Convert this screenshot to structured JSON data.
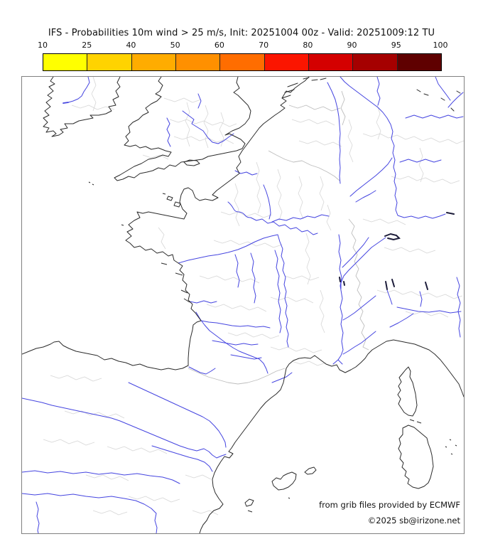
{
  "title": "IFS - Probabilities 10m wind > 25 m/s, Init: 20251004 00z - Valid: 20251009:12 TU",
  "colorbar": {
    "ticks": [
      "10",
      "25",
      "40",
      "50",
      "60",
      "70",
      "80",
      "90",
      "95",
      "100"
    ],
    "colors": [
      "#ffff00",
      "#ffd300",
      "#ffac00",
      "#ff9000",
      "#ff6d00",
      "#fb1500",
      "#d40000",
      "#a50000",
      "#5f0000"
    ]
  },
  "map": {
    "credit_line1": "from grib files provided by ECMWF",
    "credit_line2": "©2025 sb@irizone.net",
    "colors": {
      "coastline": "#2b2b2b",
      "river": "#4545e0",
      "admin_border": "#d6d6d6",
      "country_border": "#bdbdbd",
      "lake": "#1c1c3a",
      "frame": "#808080",
      "background": "#ffffff"
    }
  }
}
